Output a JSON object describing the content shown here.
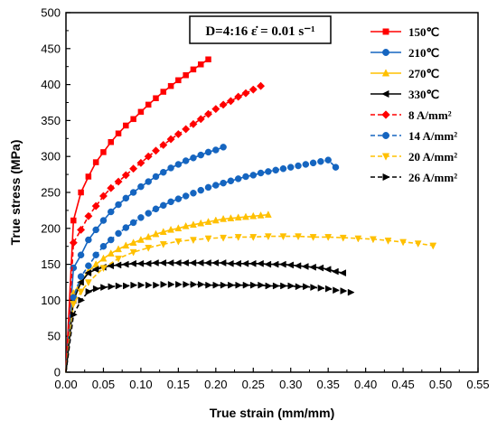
{
  "chart_data": {
    "type": "line",
    "annotation": "D=4:16  ε̇ = 0.01 s⁻¹",
    "xlabel": "True strain  (mm/mm)",
    "ylabel": "True stress  (MPa)",
    "xlim": [
      0,
      0.55
    ],
    "ylim": [
      0,
      500
    ],
    "xticks": [
      "0.00",
      "0.05",
      "0.10",
      "0.15",
      "0.20",
      "0.25",
      "0.30",
      "0.35",
      "0.40",
      "0.45",
      "0.50",
      "0.55"
    ],
    "yticks": [
      "0",
      "50",
      "100",
      "150",
      "200",
      "250",
      "300",
      "350",
      "400",
      "450",
      "500"
    ],
    "grid": false,
    "legend_position": "top-right",
    "series": [
      {
        "name": "150℃",
        "color": "#ff0000",
        "marker": "square",
        "dash": "solid",
        "x": [
          0.01,
          0.02,
          0.03,
          0.04,
          0.05,
          0.06,
          0.07,
          0.08,
          0.09,
          0.1,
          0.11,
          0.12,
          0.13,
          0.14,
          0.15,
          0.16,
          0.17,
          0.18,
          0.19
        ],
        "y": [
          211,
          250,
          272,
          292,
          306,
          320,
          332,
          343,
          352,
          362,
          372,
          381,
          390,
          398,
          406,
          413,
          421,
          428,
          435
        ]
      },
      {
        "name": "210℃",
        "color": "#1565c0",
        "marker": "circle",
        "dash": "solid",
        "x": [
          0.01,
          0.02,
          0.03,
          0.04,
          0.05,
          0.06,
          0.07,
          0.08,
          0.09,
          0.1,
          0.11,
          0.12,
          0.13,
          0.14,
          0.15,
          0.16,
          0.17,
          0.18,
          0.19,
          0.2,
          0.21
        ],
        "y": [
          145,
          163,
          184,
          198,
          211,
          223,
          233,
          242,
          250,
          258,
          265,
          272,
          278,
          284,
          289,
          294,
          298,
          302,
          306,
          309,
          313
        ]
      },
      {
        "name": "270℃",
        "color": "#ffc000",
        "marker": "triangle-up",
        "dash": "solid",
        "x": [
          0.01,
          0.02,
          0.03,
          0.04,
          0.05,
          0.06,
          0.07,
          0.08,
          0.09,
          0.1,
          0.11,
          0.12,
          0.13,
          0.14,
          0.15,
          0.16,
          0.17,
          0.18,
          0.19,
          0.2,
          0.21,
          0.22,
          0.23,
          0.24,
          0.25,
          0.26,
          0.27
        ],
        "y": [
          110,
          125,
          140,
          150,
          158,
          165,
          171,
          176,
          180,
          184,
          188,
          192,
          195,
          198,
          200,
          203,
          205,
          207,
          209,
          211,
          213,
          214,
          215,
          216,
          217,
          218,
          219
        ]
      },
      {
        "name": "330℃",
        "color": "#000000",
        "marker": "triangle-left",
        "dash": "solid",
        "x": [
          0.01,
          0.02,
          0.03,
          0.04,
          0.05,
          0.06,
          0.07,
          0.08,
          0.09,
          0.1,
          0.11,
          0.12,
          0.13,
          0.14,
          0.15,
          0.16,
          0.17,
          0.18,
          0.19,
          0.2,
          0.21,
          0.22,
          0.23,
          0.24,
          0.25,
          0.26,
          0.27,
          0.28,
          0.29,
          0.3,
          0.31,
          0.32,
          0.33,
          0.34,
          0.35,
          0.36,
          0.37
        ],
        "y": [
          100,
          125,
          138,
          143,
          146,
          148,
          149,
          150,
          151,
          151,
          151,
          152,
          152,
          152,
          152,
          152,
          152,
          152,
          152,
          152,
          152,
          151,
          151,
          151,
          151,
          151,
          150,
          150,
          150,
          149,
          148,
          147,
          146,
          145,
          143,
          140,
          138
        ]
      },
      {
        "name": "8 A/mm²",
        "color": "#ff0000",
        "marker": "diamond",
        "dash": "dashed",
        "x": [
          0.01,
          0.02,
          0.03,
          0.04,
          0.05,
          0.06,
          0.07,
          0.08,
          0.09,
          0.1,
          0.11,
          0.12,
          0.13,
          0.14,
          0.15,
          0.16,
          0.17,
          0.18,
          0.19,
          0.2,
          0.21,
          0.22,
          0.23,
          0.24,
          0.25,
          0.26
        ],
        "y": [
          180,
          198,
          217,
          231,
          245,
          256,
          265,
          274,
          283,
          291,
          300,
          308,
          316,
          324,
          331,
          338,
          345,
          352,
          359,
          366,
          372,
          377,
          383,
          388,
          393,
          398
        ]
      },
      {
        "name": "14 A/mm²",
        "color": "#1565c0",
        "marker": "circle",
        "dash": "dashed",
        "x": [
          0.01,
          0.02,
          0.03,
          0.04,
          0.05,
          0.06,
          0.07,
          0.08,
          0.09,
          0.1,
          0.11,
          0.12,
          0.13,
          0.14,
          0.15,
          0.16,
          0.17,
          0.18,
          0.19,
          0.2,
          0.21,
          0.22,
          0.23,
          0.24,
          0.25,
          0.26,
          0.27,
          0.28,
          0.29,
          0.3,
          0.31,
          0.32,
          0.33,
          0.34,
          0.35,
          0.36
        ],
        "y": [
          104,
          133,
          148,
          163,
          175,
          184,
          193,
          201,
          208,
          215,
          221,
          227,
          232,
          237,
          241,
          245,
          249,
          253,
          257,
          260,
          263,
          266,
          269,
          272,
          274,
          277,
          279,
          281,
          283,
          285,
          287,
          289,
          291,
          293,
          295,
          285
        ]
      },
      {
        "name": "20 A/mm²",
        "color": "#ffc000",
        "marker": "triangle-down",
        "dash": "dashed",
        "x": [
          0.01,
          0.02,
          0.03,
          0.05,
          0.07,
          0.09,
          0.11,
          0.13,
          0.15,
          0.17,
          0.19,
          0.21,
          0.23,
          0.25,
          0.27,
          0.29,
          0.31,
          0.33,
          0.35,
          0.37,
          0.39,
          0.41,
          0.43,
          0.45,
          0.47,
          0.49
        ],
        "y": [
          95,
          112,
          125,
          145,
          158,
          167,
          173,
          178,
          182,
          184,
          186,
          187,
          188,
          188,
          189,
          189,
          189,
          188,
          188,
          187,
          186,
          185,
          183,
          181,
          179,
          176
        ]
      },
      {
        "name": "26 A/mm²",
        "color": "#000000",
        "marker": "triangle-right",
        "dash": "dashed",
        "x": [
          0.01,
          0.02,
          0.03,
          0.04,
          0.05,
          0.06,
          0.07,
          0.08,
          0.09,
          0.1,
          0.11,
          0.12,
          0.13,
          0.14,
          0.15,
          0.16,
          0.17,
          0.18,
          0.19,
          0.2,
          0.21,
          0.22,
          0.23,
          0.24,
          0.25,
          0.26,
          0.27,
          0.28,
          0.29,
          0.3,
          0.31,
          0.32,
          0.33,
          0.34,
          0.35,
          0.36,
          0.37,
          0.38
        ],
        "y": [
          80,
          100,
          112,
          116,
          118,
          119,
          120,
          120,
          121,
          121,
          121,
          121,
          122,
          122,
          122,
          122,
          122,
          122,
          121,
          121,
          121,
          121,
          121,
          121,
          121,
          121,
          120,
          120,
          120,
          120,
          119,
          119,
          118,
          117,
          116,
          114,
          113,
          111
        ]
      }
    ]
  }
}
